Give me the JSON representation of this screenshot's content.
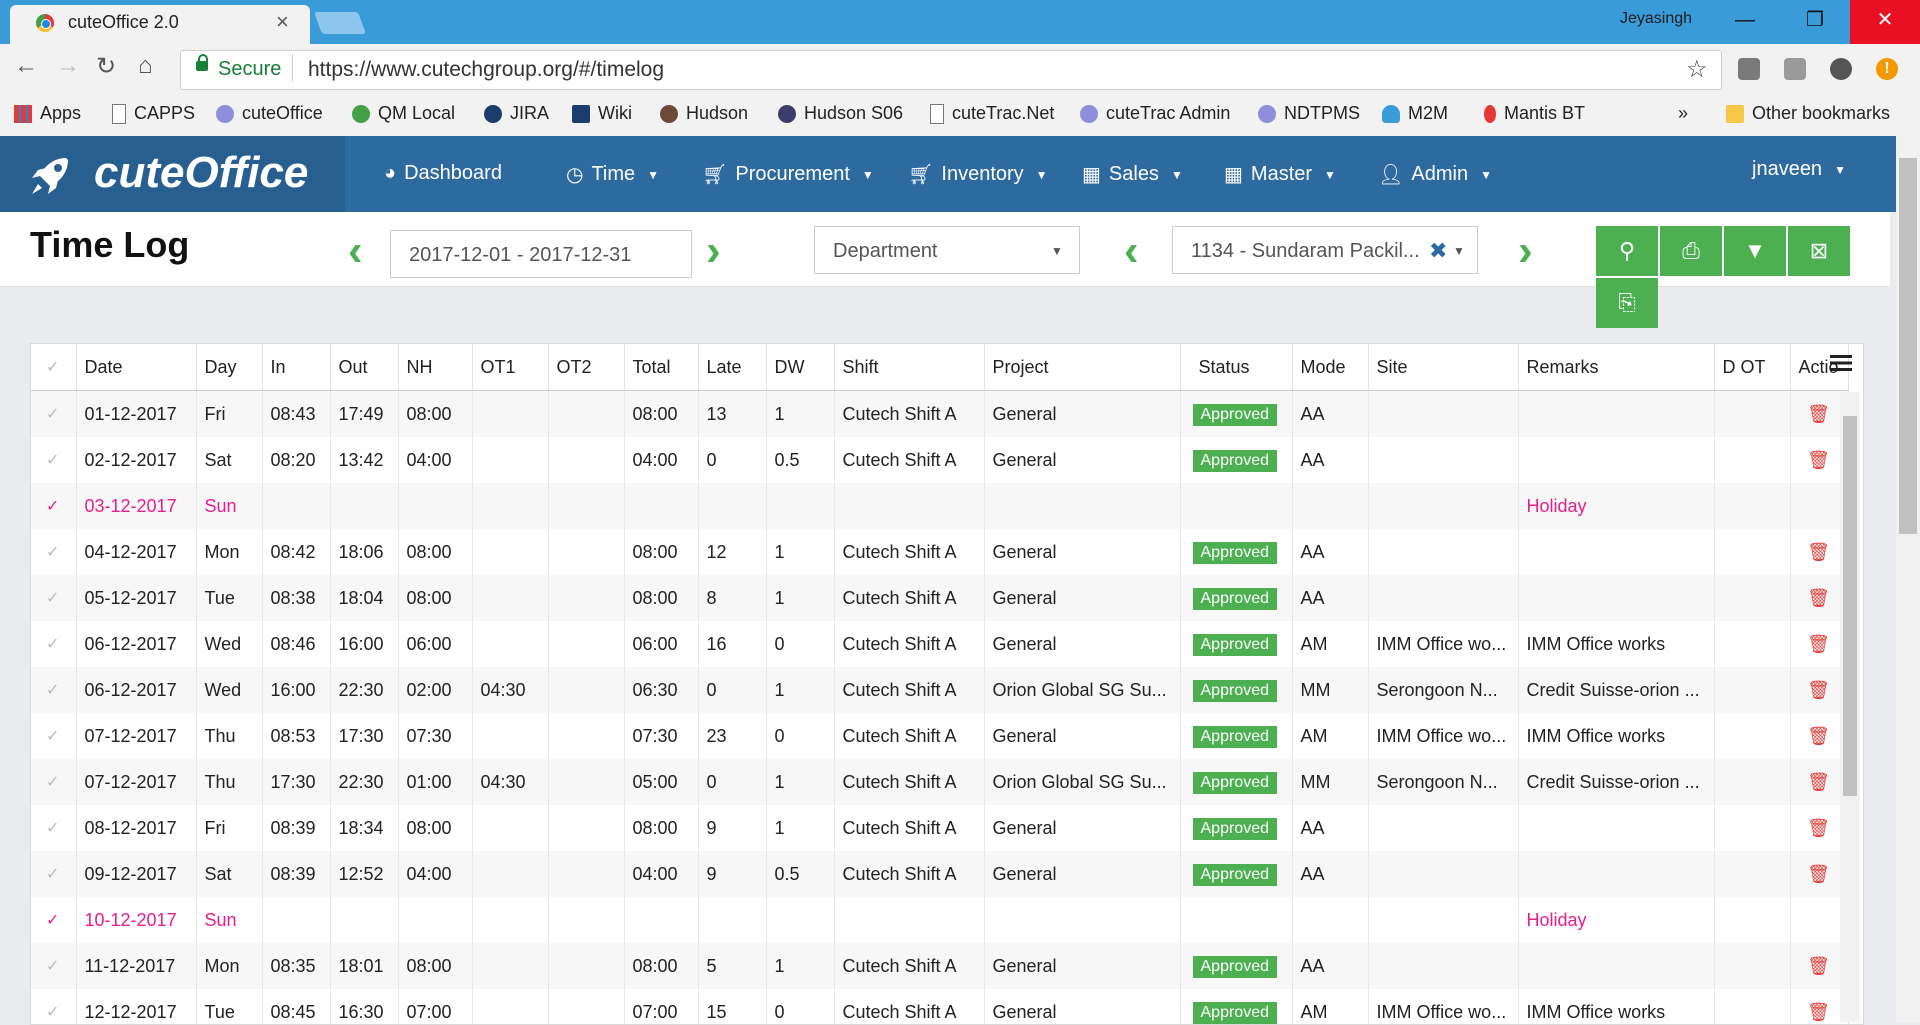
{
  "browser": {
    "tab_title": "cuteOffice 2.0",
    "user": "Jeyasingh",
    "secure_label": "Secure",
    "url": "https://www.cutechgroup.org/#/timelog",
    "bookmarks": [
      "Apps",
      "CAPPS",
      "cuteOffice",
      "QM Local",
      "JIRA",
      "Wiki",
      "Hudson",
      "Hudson S06",
      "cuteTrac.Net",
      "cuteTrac Admin",
      "NDTPMS",
      "M2M",
      "Mantis BT"
    ],
    "more": "»",
    "other_bookmarks": "Other bookmarks"
  },
  "app": {
    "brand": "cuteOffice",
    "menu": [
      "Dashboard",
      "Time",
      "Procurement",
      "Inventory",
      "Sales",
      "Master",
      "Admin"
    ],
    "user": "jnaveen"
  },
  "page": {
    "title": "Time Log",
    "date_range": "2017-12-01 - 2017-12-31",
    "department_placeholder": "Department",
    "employee": "1134 - Sundaram Packil..."
  },
  "table": {
    "headers": [
      "Date",
      "Day",
      "In",
      "Out",
      "NH",
      "OT1",
      "OT2",
      "Total",
      "Late",
      "DW",
      "Shift",
      "Project",
      "Status",
      "Mode",
      "Site",
      "Remarks",
      "D OT",
      "Actio"
    ],
    "rows": [
      {
        "date": "01-12-2017",
        "day": "Fri",
        "in": "08:43",
        "out": "17:49",
        "nh": "08:00",
        "ot1": "",
        "ot2": "",
        "total": "08:00",
        "late": "13",
        "dw": "1",
        "shift": "Cutech Shift A",
        "project": "General",
        "status": "Approved",
        "mode": "AA",
        "site": "",
        "remarks": "",
        "dot": ""
      },
      {
        "date": "02-12-2017",
        "day": "Sat",
        "in": "08:20",
        "out": "13:42",
        "nh": "04:00",
        "ot1": "",
        "ot2": "",
        "total": "04:00",
        "late": "0",
        "dw": "0.5",
        "shift": "Cutech Shift A",
        "project": "General",
        "status": "Approved",
        "mode": "AA",
        "site": "",
        "remarks": "",
        "dot": ""
      },
      {
        "date": "03-12-2017",
        "day": "Sun",
        "in": "",
        "out": "",
        "nh": "",
        "ot1": "",
        "ot2": "",
        "total": "",
        "late": "",
        "dw": "",
        "shift": "",
        "project": "",
        "status": "",
        "mode": "",
        "site": "",
        "remarks": "Holiday",
        "dot": ""
      },
      {
        "date": "04-12-2017",
        "day": "Mon",
        "in": "08:42",
        "out": "18:06",
        "nh": "08:00",
        "ot1": "",
        "ot2": "",
        "total": "08:00",
        "late": "12",
        "dw": "1",
        "shift": "Cutech Shift A",
        "project": "General",
        "status": "Approved",
        "mode": "AA",
        "site": "",
        "remarks": "",
        "dot": ""
      },
      {
        "date": "05-12-2017",
        "day": "Tue",
        "in": "08:38",
        "out": "18:04",
        "nh": "08:00",
        "ot1": "",
        "ot2": "",
        "total": "08:00",
        "late": "8",
        "dw": "1",
        "shift": "Cutech Shift A",
        "project": "General",
        "status": "Approved",
        "mode": "AA",
        "site": "",
        "remarks": "",
        "dot": ""
      },
      {
        "date": "06-12-2017",
        "day": "Wed",
        "in": "08:46",
        "out": "16:00",
        "nh": "06:00",
        "ot1": "",
        "ot2": "",
        "total": "06:00",
        "late": "16",
        "dw": "0",
        "shift": "Cutech Shift A",
        "project": "General",
        "status": "Approved",
        "mode": "AM",
        "site": "IMM Office wo...",
        "remarks": "IMM Office works",
        "dot": ""
      },
      {
        "date": "06-12-2017",
        "day": "Wed",
        "in": "16:00",
        "out": "22:30",
        "nh": "02:00",
        "ot1": "04:30",
        "ot2": "",
        "total": "06:30",
        "late": "0",
        "dw": "1",
        "shift": "Cutech Shift A",
        "project": "Orion Global SG Su...",
        "status": "Approved",
        "mode": "MM",
        "site": "Serongoon N...",
        "remarks": "Credit Suisse-orion ...",
        "dot": ""
      },
      {
        "date": "07-12-2017",
        "day": "Thu",
        "in": "08:53",
        "out": "17:30",
        "nh": "07:30",
        "ot1": "",
        "ot2": "",
        "total": "07:30",
        "late": "23",
        "dw": "0",
        "shift": "Cutech Shift A",
        "project": "General",
        "status": "Approved",
        "mode": "AM",
        "site": "IMM Office wo...",
        "remarks": "IMM Office works",
        "dot": ""
      },
      {
        "date": "07-12-2017",
        "day": "Thu",
        "in": "17:30",
        "out": "22:30",
        "nh": "01:00",
        "ot1": "04:30",
        "ot2": "",
        "total": "05:00",
        "late": "0",
        "dw": "1",
        "shift": "Cutech Shift A",
        "project": "Orion Global SG Su...",
        "status": "Approved",
        "mode": "MM",
        "site": "Serongoon N...",
        "remarks": "Credit Suisse-orion ...",
        "dot": ""
      },
      {
        "date": "08-12-2017",
        "day": "Fri",
        "in": "08:39",
        "out": "18:34",
        "nh": "08:00",
        "ot1": "",
        "ot2": "",
        "total": "08:00",
        "late": "9",
        "dw": "1",
        "shift": "Cutech Shift A",
        "project": "General",
        "status": "Approved",
        "mode": "AA",
        "site": "",
        "remarks": "",
        "dot": ""
      },
      {
        "date": "09-12-2017",
        "day": "Sat",
        "in": "08:39",
        "out": "12:52",
        "nh": "04:00",
        "ot1": "",
        "ot2": "",
        "total": "04:00",
        "late": "9",
        "dw": "0.5",
        "shift": "Cutech Shift A",
        "project": "General",
        "status": "Approved",
        "mode": "AA",
        "site": "",
        "remarks": "",
        "dot": ""
      },
      {
        "date": "10-12-2017",
        "day": "Sun",
        "in": "",
        "out": "",
        "nh": "",
        "ot1": "",
        "ot2": "",
        "total": "",
        "late": "",
        "dw": "",
        "shift": "",
        "project": "",
        "status": "",
        "mode": "",
        "site": "",
        "remarks": "Holiday",
        "dot": ""
      },
      {
        "date": "11-12-2017",
        "day": "Mon",
        "in": "08:35",
        "out": "18:01",
        "nh": "08:00",
        "ot1": "",
        "ot2": "",
        "total": "08:00",
        "late": "5",
        "dw": "1",
        "shift": "Cutech Shift A",
        "project": "General",
        "status": "Approved",
        "mode": "AA",
        "site": "",
        "remarks": "",
        "dot": ""
      },
      {
        "date": "12-12-2017",
        "day": "Tue",
        "in": "08:45",
        "out": "16:30",
        "nh": "07:00",
        "ot1": "",
        "ot2": "",
        "total": "07:00",
        "late": "15",
        "dw": "0",
        "shift": "Cutech Shift A",
        "project": "General",
        "status": "Approved",
        "mode": "AM",
        "site": "IMM Office wo...",
        "remarks": "IMM Office works",
        "dot": ""
      }
    ]
  },
  "colors": {
    "accent": "#4caf50",
    "header": "#2c6aa0",
    "holiday": "#e91e8c",
    "delete": "#e53935"
  }
}
